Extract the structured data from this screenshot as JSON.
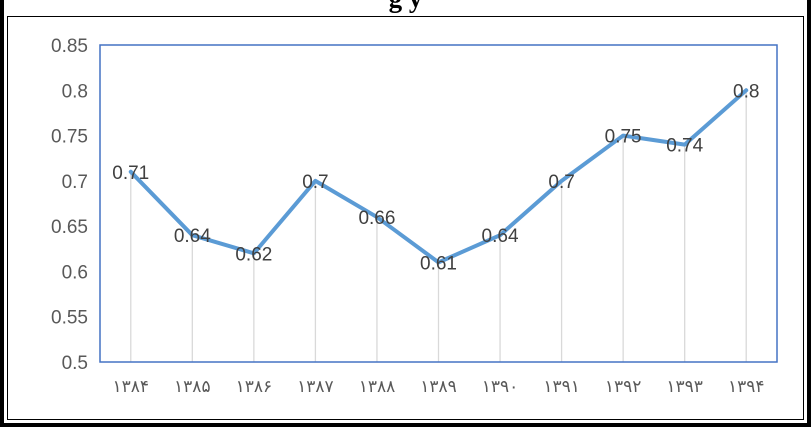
{
  "header": {
    "title_fragment": "g          y"
  },
  "chart_data": {
    "type": "line",
    "title": "",
    "xlabel": "",
    "ylabel": "",
    "categories": [
      "۱۳۸۴",
      "۱۳۸۵",
      "۱۳۸۶",
      "۱۳۸۷",
      "۱۳۸۸",
      "۱۳۸۹",
      "۱۳۹۰",
      "۱۳۹۱",
      "۱۳۹۲",
      "۱۳۹۳",
      "۱۳۹۴"
    ],
    "values": [
      0.71,
      0.64,
      0.62,
      0.7,
      0.66,
      0.61,
      0.64,
      0.7,
      0.75,
      0.74,
      0.8
    ],
    "data_labels": [
      "0.71",
      "0.64",
      "0.62",
      "0.7",
      "0.66",
      "0.61",
      "0.64",
      "0.7",
      "0.75",
      "0.74",
      "0.8"
    ],
    "ylim": [
      0.5,
      0.85
    ],
    "y_ticks": [
      "0.5",
      "0.55",
      "0.6",
      "0.65",
      "0.7",
      "0.75",
      "0.8",
      "0.85"
    ],
    "grid": "vertical drop lines",
    "legend": "none",
    "colors": {
      "line": "#5b9bd5",
      "plot_border": "#4472c4",
      "drop_lines": "#d9d9d9",
      "text": "#595959"
    }
  }
}
